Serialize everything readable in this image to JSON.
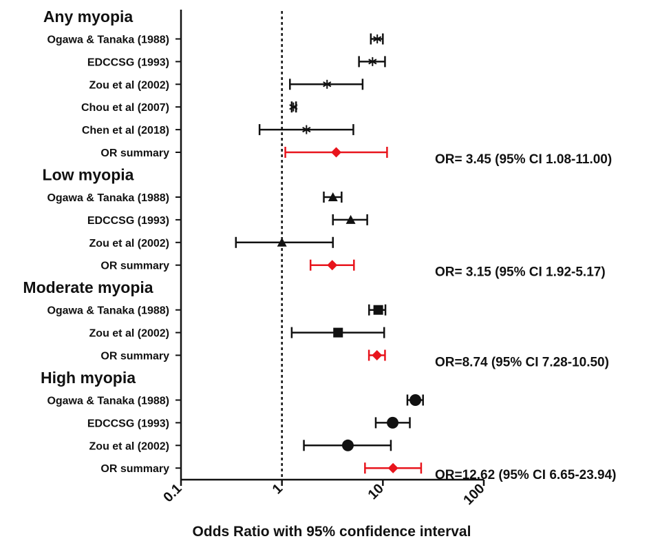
{
  "chart_data": {
    "type": "forest",
    "x_scale": "log",
    "xlim": [
      0.1,
      100
    ],
    "x_ticks": [
      "0.1",
      "1",
      "10",
      "100"
    ],
    "x_tick_values": [
      0.1,
      1,
      10,
      100
    ],
    "reference_line": 1,
    "xlabel": "Odds Ratio with 95% confidence interval",
    "grid": false,
    "colors": {
      "study": "#111111",
      "summary": "#e8141c"
    },
    "groups": [
      {
        "title": "Any myopia",
        "marker": "asterisk",
        "rows": [
          {
            "label": "Ogawa & Tanaka (1988)",
            "or": 8.8,
            "lo": 7.6,
            "hi": 10.0
          },
          {
            "label": "EDCCSG (1993)",
            "or": 7.9,
            "lo": 5.8,
            "hi": 10.5
          },
          {
            "label": "Zou et al (2002)",
            "or": 2.8,
            "lo": 1.2,
            "hi": 6.3
          },
          {
            "label": "Chou et al (2007)",
            "or": 1.3,
            "lo": 1.25,
            "hi": 1.38
          },
          {
            "label": "Chen et al (2018)",
            "or": 1.75,
            "lo": 0.6,
            "hi": 5.1
          },
          {
            "label": "OR summary",
            "or": 3.45,
            "lo": 1.08,
            "hi": 11.0,
            "summary": true,
            "text": "OR= 3.45 (95% CI 1.08-11.00)"
          }
        ]
      },
      {
        "title": "Low myopia",
        "marker": "triangle",
        "rows": [
          {
            "label": "Ogawa & Tanaka (1988)",
            "or": 3.2,
            "lo": 2.6,
            "hi": 3.9
          },
          {
            "label": "EDCCSG (1993)",
            "or": 4.8,
            "lo": 3.2,
            "hi": 7.0
          },
          {
            "label": "Zou et al (2002)",
            "or": 1.0,
            "lo": 0.35,
            "hi": 3.2
          },
          {
            "label": "OR summary",
            "or": 3.15,
            "lo": 1.92,
            "hi": 5.17,
            "summary": true,
            "text": "OR= 3.15 (95% CI 1.92-5.17)"
          }
        ]
      },
      {
        "title": "Moderate myopia",
        "marker": "square",
        "rows": [
          {
            "label": "Ogawa & Tanaka (1988)",
            "or": 9.0,
            "lo": 7.3,
            "hi": 10.6
          },
          {
            "label": "Zou et al (2002)",
            "or": 3.6,
            "lo": 1.25,
            "hi": 10.3
          },
          {
            "label": "OR summary",
            "or": 8.74,
            "lo": 7.28,
            "hi": 10.5,
            "summary": true,
            "text": "OR=8.74 (95% CI 7.28-10.50)"
          }
        ]
      },
      {
        "title": "High myopia",
        "marker": "circle",
        "rows": [
          {
            "label": "Ogawa & Tanaka (1988)",
            "or": 21.0,
            "lo": 17.5,
            "hi": 25.0
          },
          {
            "label": "EDCCSG (1993)",
            "or": 12.5,
            "lo": 8.5,
            "hi": 18.5
          },
          {
            "label": "Zou et al (2002)",
            "or": 4.5,
            "lo": 1.65,
            "hi": 12.0
          },
          {
            "label": "OR summary",
            "or": 12.62,
            "lo": 6.65,
            "hi": 23.94,
            "summary": true,
            "text": "OR=12.62 (95% CI 6.65-23.94)"
          }
        ]
      }
    ]
  }
}
